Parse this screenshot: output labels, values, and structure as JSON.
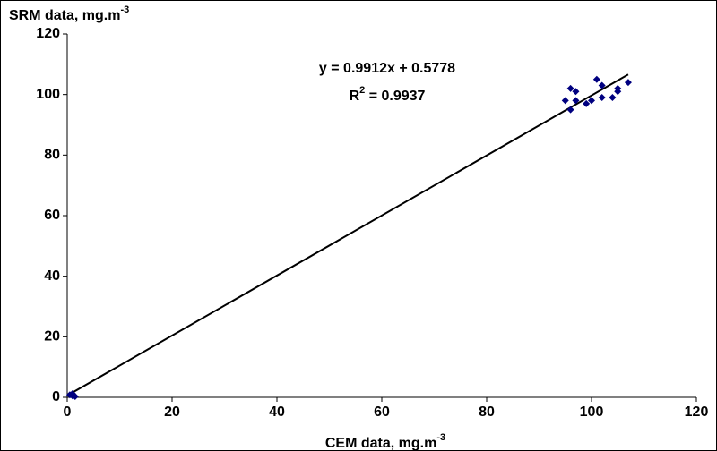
{
  "chart_data": {
    "type": "scatter",
    "y_label": "SRM data, mg.m",
    "y_label_sup": "-3",
    "x_label": "CEM data, mg.m",
    "x_label_sup": "-3",
    "annotation": {
      "equation": "y = 0.9912x + 0.5778",
      "r_main": "R",
      "r_sup": "2",
      "r_value": " = 0.9937"
    },
    "trendline": {
      "slope": 0.9912,
      "intercept": 0.5778,
      "xlim": [
        0,
        107
      ]
    },
    "series": [
      {
        "color": "#000080",
        "x": [
          0.5,
          1,
          1.5,
          1,
          95,
          96,
          96,
          97,
          97,
          99,
          100,
          101,
          102,
          102,
          104,
          105,
          105,
          107
        ],
        "values": [
          0.8,
          1.2,
          0.3,
          0.5,
          98,
          102,
          95,
          101,
          98,
          97,
          98,
          105,
          103,
          99,
          99,
          101,
          102,
          104
        ]
      }
    ],
    "xlim": [
      0,
      120
    ],
    "xticks": [
      0,
      20,
      40,
      60,
      80,
      100,
      120
    ],
    "ylim": [
      0,
      120
    ],
    "yticks": [
      0,
      20,
      40,
      60,
      80,
      100,
      120
    ]
  }
}
